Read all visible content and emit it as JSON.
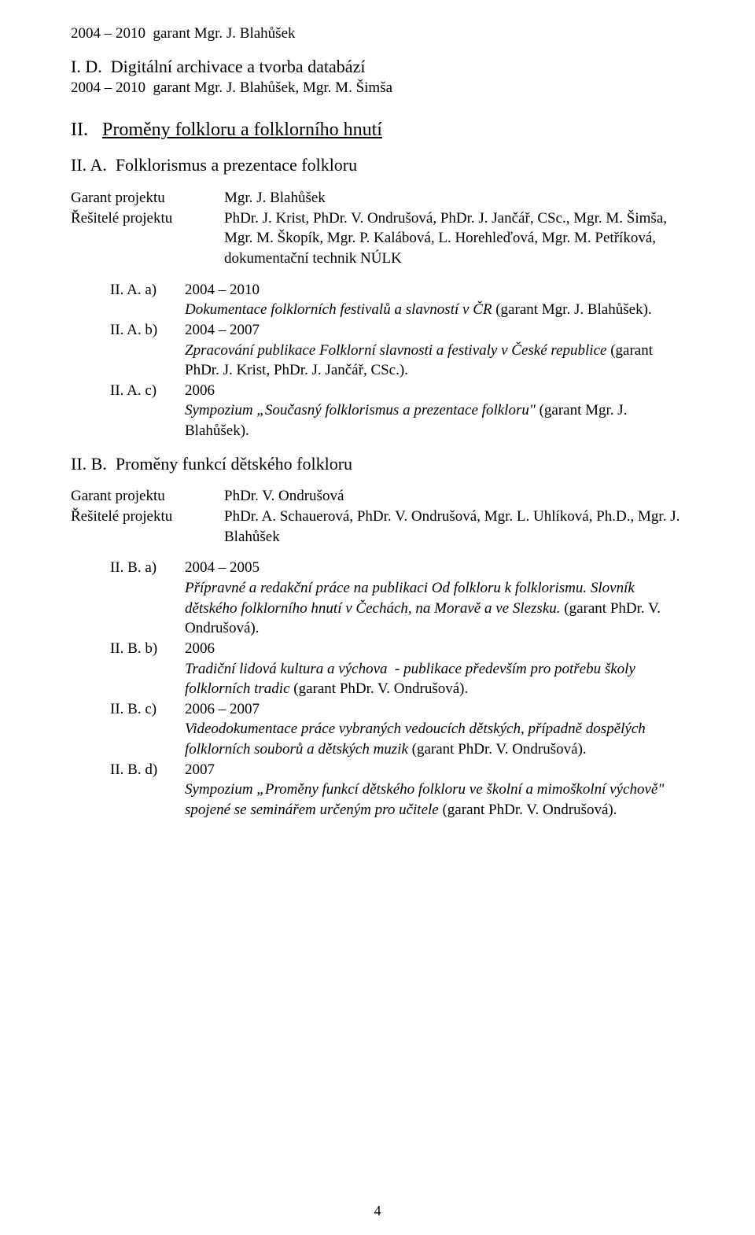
{
  "top": {
    "line1": "2004 – 2010  garant Mgr. J. Blahůšek",
    "ID_title": "I. D.  Digitální archivace a tvorba databází",
    "ID_line": "2004 – 2010  garant Mgr. J. Blahůšek, Mgr. M. Šimša"
  },
  "sec2": {
    "roman": "II.",
    "title": "Proměny folkloru a folklorního hnutí"
  },
  "IIA": {
    "title": "II. A.  Folklorismus a prezentace folkloru",
    "garant_label": "Garant projektu",
    "garant_value": "Mgr. J. Blahůšek",
    "res_label": "Řešitelé projektu",
    "res_value": "PhDr. J. Krist, PhDr. V. Ondrušová, PhDr. J. Jančář, CSc., Mgr. M. Šimša, Mgr. M. Škopík, Mgr. P. Kalábová, L. Horehleďová, Mgr. M. Petříková, dokumentační technik NÚLK",
    "a": {
      "label": "II. A. a)",
      "year": "2004 – 2010",
      "desc_it": "Dokumentace folklorních festivalů a slavností v ČR ",
      "desc_rest": "(garant Mgr. J. Blahůšek)."
    },
    "b": {
      "label": "II. A. b)",
      "year": "2004 – 2007",
      "desc_it": "Zpracování publikace Folklorní slavnosti a festivaly v České republice ",
      "desc_rest": "(garant PhDr. J. Krist, PhDr. J. Jančář, CSc.)."
    },
    "c": {
      "label": "II. A. c)",
      "year": "2006",
      "desc_it": "Sympozium „Současný folklorismus a prezentace folkloru\" ",
      "desc_rest": "(garant Mgr. J. Blahůšek)."
    }
  },
  "IIB": {
    "title": "II. B.  Proměny funkcí dětského folkloru",
    "garant_label": "Garant projektu",
    "garant_value": "PhDr. V. Ondrušová",
    "res_label": "Řešitelé projektu",
    "res_value": "PhDr. A. Schauerová, PhDr. V. Ondrušová, Mgr. L. Uhlíková, Ph.D., Mgr. J. Blahůšek",
    "a": {
      "label": "II. B. a)",
      "year": "2004 – 2005",
      "desc_it": "Přípravné a redakční práce na publikaci Od folkloru k folklorismu. Slovník dětského folklorního hnutí v Čechách, na Moravě a ve Slezsku. ",
      "desc_rest": "(garant PhDr. V. Ondrušová)."
    },
    "b": {
      "label": "II. B. b)",
      "year": "2006",
      "desc_it": "Tradiční lidová kultura a výchova  - publikace především pro potřebu školy folklorních tradic ",
      "desc_rest": "(garant PhDr. V. Ondrušová)."
    },
    "c": {
      "label": "II. B. c)",
      "year": "2006 – 2007",
      "desc_it": "Videodokumentace práce vybraných vedoucích dětských, případně dospělých folklorních souborů a dětských muzik ",
      "desc_rest": "(garant PhDr. V. Ondrušová)."
    },
    "d": {
      "label": "II. B. d)",
      "year": "2007",
      "desc_it": "Sympozium „Proměny funkcí dětského folkloru ve školní a mimoškolní výchově\" spojené se seminářem určeným pro učitele ",
      "desc_rest": "(garant PhDr. V. Ondrušová)."
    }
  },
  "page_number": "4"
}
